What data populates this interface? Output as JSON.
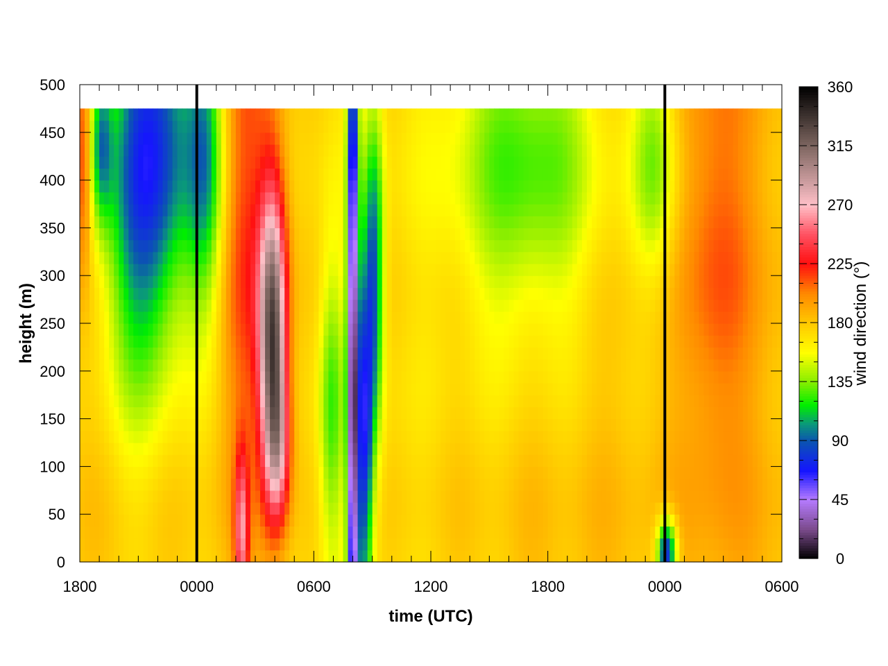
{
  "chart_data": {
    "type": "heatmap",
    "title": "",
    "xlabel": "time (UTC)",
    "ylabel": "height (m)",
    "colorbar_label": "wind direction (°)",
    "x_ticks": [
      "1800",
      "0000",
      "0600",
      "1200",
      "1800",
      "0000",
      "0600"
    ],
    "x_tick_hours": [
      0,
      6,
      12,
      18,
      24,
      30,
      36
    ],
    "xlim_hours": [
      0,
      36
    ],
    "y_ticks": [
      0,
      50,
      100,
      150,
      200,
      250,
      300,
      350,
      400,
      450,
      500
    ],
    "ylim": [
      0,
      500
    ],
    "colorbar_ticks": [
      0,
      45,
      90,
      135,
      180,
      225,
      270,
      315,
      360
    ],
    "colorbar_range": [
      0,
      360
    ],
    "data_top_height": 475,
    "vertical_markers_hours": [
      6,
      30
    ],
    "colormap": [
      [
        0,
        "#000000"
      ],
      [
        22,
        "#7a4a8a"
      ],
      [
        45,
        "#b57bff"
      ],
      [
        67,
        "#1515ff"
      ],
      [
        90,
        "#0b55b0"
      ],
      [
        103,
        "#0a9a78"
      ],
      [
        117,
        "#00ee00"
      ],
      [
        135,
        "#88ee00"
      ],
      [
        157,
        "#ffff00"
      ],
      [
        180,
        "#ffc800"
      ],
      [
        202,
        "#ff8a00"
      ],
      [
        225,
        "#ff1010"
      ],
      [
        247,
        "#ff5060"
      ],
      [
        270,
        "#ffc0c8"
      ],
      [
        315,
        "#7d6660"
      ],
      [
        360,
        "#000000"
      ]
    ],
    "direction_field": {
      "base": [
        {
          "h": 0,
          "d": 180
        },
        {
          "h": 14,
          "d": 170
        },
        {
          "h": 24,
          "d": 182
        },
        {
          "h": 36,
          "d": 185
        }
      ],
      "features": [
        {
          "t": 0.2,
          "z": 420,
          "st": 0.25,
          "sz": 80,
          "v": 45
        },
        {
          "t": 1.1,
          "z": 440,
          "st": 0.4,
          "sz": 60,
          "v": -60
        },
        {
          "t": 3.8,
          "z": 450,
          "st": 1.6,
          "sz": 150,
          "v": -95
        },
        {
          "t": 2.8,
          "z": 300,
          "st": 1.2,
          "sz": 130,
          "v": -30
        },
        {
          "t": 6.5,
          "z": 420,
          "st": 0.7,
          "sz": 120,
          "v": -60
        },
        {
          "t": 8.6,
          "z": 350,
          "st": 1.2,
          "sz": 230,
          "v": 42
        },
        {
          "t": 8.3,
          "z": 30,
          "st": 0.25,
          "sz": 60,
          "v": 70
        },
        {
          "t": 9.9,
          "z": 240,
          "st": 0.5,
          "sz": 110,
          "v": 140
        },
        {
          "t": 10.2,
          "z": 120,
          "st": 0.45,
          "sz": 60,
          "v": 60
        },
        {
          "t": 12.9,
          "z": 160,
          "st": 0.45,
          "sz": 120,
          "v": -45
        },
        {
          "t": 14.0,
          "z": 200,
          "st": 0.2,
          "sz": 300,
          "v": -150
        },
        {
          "t": 14.6,
          "z": 120,
          "st": 0.3,
          "sz": 140,
          "v": -90
        },
        {
          "t": 15.1,
          "z": 300,
          "st": 0.35,
          "sz": 120,
          "v": -80
        },
        {
          "t": 23.0,
          "z": 420,
          "st": 2.8,
          "sz": 130,
          "v": -55
        },
        {
          "t": 29.5,
          "z": 420,
          "st": 0.8,
          "sz": 90,
          "v": -45
        },
        {
          "t": 30.1,
          "z": 10,
          "st": 0.35,
          "sz": 25,
          "v": -110
        },
        {
          "t": 32.7,
          "z": 330,
          "st": 1.2,
          "sz": 200,
          "v": 30
        }
      ]
    }
  }
}
